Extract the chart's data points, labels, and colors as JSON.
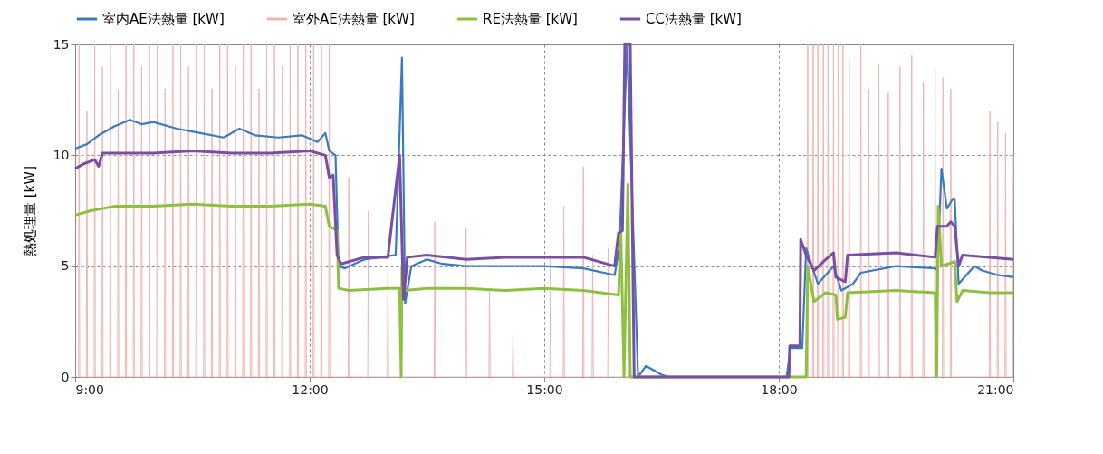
{
  "chart_data": {
    "type": "line",
    "ylabel": "熱処理量 [kW]",
    "xlim": [
      9,
      21
    ],
    "ylim": [
      0,
      15
    ],
    "xticks": [
      {
        "value": 9,
        "label": "9:00"
      },
      {
        "value": 12,
        "label": "12:00"
      },
      {
        "value": 15,
        "label": "15:00"
      },
      {
        "value": 18,
        "label": "18:00"
      },
      {
        "value": 21,
        "label": "21:00"
      }
    ],
    "yticks": [
      0,
      5,
      10,
      15
    ],
    "grid": true,
    "legend": "top",
    "marker": "none",
    "line_style": "solid",
    "series": [
      {
        "name": "室内AE法熱量 [kW]",
        "color": "#3a7bbf",
        "x": [
          9.0,
          9.15,
          9.3,
          9.5,
          9.7,
          9.85,
          10.0,
          10.3,
          10.6,
          10.9,
          11.1,
          11.3,
          11.6,
          11.9,
          12.1,
          12.2,
          12.25,
          12.33,
          12.37,
          12.45,
          12.7,
          12.9,
          13.1,
          13.18,
          13.22,
          13.3,
          13.5,
          13.7,
          14.0,
          14.5,
          15.0,
          15.5,
          15.9,
          15.96,
          16.06,
          16.2,
          16.3,
          16.5,
          16.6,
          18.1,
          18.15,
          18.3,
          18.35,
          18.5,
          18.7,
          18.8,
          18.95,
          19.05,
          19.5,
          20.0,
          20.03,
          20.08,
          20.15,
          20.22,
          20.25,
          20.3,
          20.5,
          20.6,
          20.8,
          21.0
        ],
        "values": [
          10.3,
          10.5,
          10.9,
          11.3,
          11.6,
          11.4,
          11.5,
          11.2,
          11.0,
          10.8,
          11.2,
          10.9,
          10.8,
          10.9,
          10.6,
          11.0,
          10.2,
          10.0,
          5.0,
          4.9,
          5.3,
          5.4,
          5.5,
          14.4,
          3.3,
          5.0,
          5.3,
          5.1,
          5.0,
          5.0,
          5.0,
          4.9,
          4.6,
          5.8,
          15,
          0,
          0.5,
          0.1,
          0,
          0,
          1.3,
          1.3,
          5.8,
          4.2,
          5.0,
          3.9,
          4.2,
          4.7,
          5.0,
          4.9,
          4.8,
          9.4,
          7.6,
          8.0,
          8.0,
          4.2,
          5.0,
          4.8,
          4.6,
          4.5
        ]
      },
      {
        "name": "室外AE法熱量 [kW]",
        "color": "#f0b4b4",
        "x": [
          9.042,
          9.05,
          9.058,
          9.142,
          9.15,
          9.158,
          9.242,
          9.25,
          9.258,
          9.342,
          9.35,
          9.358,
          9.442,
          9.45,
          9.458,
          9.542,
          9.55,
          9.558,
          9.642,
          9.65,
          9.658,
          9.742,
          9.75,
          9.758,
          9.842,
          9.85,
          9.858,
          9.942,
          9.95,
          9.958,
          10.042,
          10.05,
          10.058,
          10.142,
          10.15,
          10.158,
          10.242,
          10.25,
          10.258,
          10.342,
          10.35,
          10.358,
          10.442,
          10.45,
          10.458,
          10.542,
          10.55,
          10.558,
          10.642,
          10.65,
          10.658,
          10.742,
          10.75,
          10.758,
          10.842,
          10.85,
          10.858,
          10.942,
          10.95,
          10.958,
          11.042,
          11.05,
          11.058,
          11.142,
          11.15,
          11.158,
          11.242,
          11.25,
          11.258,
          11.342,
          11.35,
          11.358,
          11.442,
          11.45,
          11.458,
          11.542,
          11.55,
          11.558,
          11.642,
          11.65,
          11.658,
          11.742,
          11.75,
          11.758,
          11.842,
          11.85,
          11.858,
          11.942,
          11.95,
          11.958,
          12.042,
          12.05,
          12.058,
          12.142,
          12.15,
          12.158,
          12.242,
          12.25,
          12.258,
          12.492,
          12.5,
          12.508,
          12.742,
          12.75,
          12.758,
          12.992,
          13.0,
          13.008,
          13.592,
          13.6,
          13.608,
          13.992,
          14.0,
          14.008,
          14.292,
          14.3,
          14.308,
          14.592,
          14.6,
          14.608,
          15.072,
          15.08,
          15.088,
          15.242,
          15.25,
          15.258,
          15.492,
          15.5,
          15.508,
          15.612,
          15.62,
          15.628,
          15.812,
          15.82,
          15.828,
          18.362,
          18.37,
          18.378,
          18.432,
          18.44,
          18.448,
          18.492,
          18.5,
          18.508,
          18.562,
          18.57,
          18.578,
          18.622,
          18.63,
          18.638,
          18.692,
          18.7,
          18.708,
          18.752,
          18.76,
          18.768,
          18.812,
          18.82,
          18.828,
          18.892,
          18.9,
          18.908,
          19.042,
          19.05,
          19.058,
          19.142,
          19.15,
          19.158,
          19.272,
          19.28,
          19.288,
          19.392,
          19.4,
          19.408,
          19.542,
          19.55,
          19.558,
          19.692,
          19.7,
          19.708,
          19.842,
          19.85,
          19.858,
          19.992,
          20.0,
          20.008,
          20.092,
          20.1,
          20.108,
          20.192,
          20.2,
          20.208,
          20.692,
          20.7,
          20.708,
          20.792,
          20.8,
          20.808,
          20.892,
          20.9,
          20.908,
          20.992,
          21.0
        ],
        "values": [
          0,
          15,
          0,
          0,
          12,
          0,
          0,
          15,
          0,
          0,
          14,
          0,
          0,
          15,
          0,
          0,
          13,
          0,
          0,
          15,
          0,
          0,
          15,
          0,
          0,
          14,
          0,
          0,
          15,
          0,
          0,
          15,
          0,
          0,
          13,
          0,
          0,
          15,
          0,
          0,
          15,
          0,
          0,
          14,
          0,
          0,
          15,
          0,
          0,
          15,
          0,
          0,
          13,
          0,
          0,
          15,
          0,
          0,
          15,
          0,
          0,
          14,
          0,
          0,
          15,
          0,
          0,
          15,
          0,
          0,
          13,
          0,
          0,
          15,
          0,
          0,
          15,
          0,
          0,
          14,
          0,
          0,
          15,
          0,
          0,
          15,
          0,
          0,
          15,
          0,
          0,
          15,
          0,
          0,
          15,
          0,
          0,
          15,
          0,
          0,
          9.0,
          0,
          0,
          7.5,
          0,
          0,
          5.0,
          0,
          0,
          7.0,
          0,
          0,
          6.7,
          0,
          0,
          4.0,
          0,
          0,
          2.0,
          0,
          0,
          5.5,
          0,
          0,
          7.7,
          0,
          0,
          9.5,
          0,
          0,
          5.5,
          0,
          0,
          5.8,
          0,
          0,
          15,
          0,
          0,
          15,
          0,
          0,
          15,
          0,
          0,
          15,
          0,
          0,
          15,
          0,
          0,
          15,
          0,
          0,
          15,
          0,
          0,
          15,
          0,
          0,
          14.4,
          0,
          0,
          15,
          0,
          0,
          13,
          0,
          0,
          14.1,
          0,
          0,
          12.8,
          0,
          0,
          14.0,
          0,
          0,
          14.5,
          0,
          0,
          13.3,
          0,
          0,
          13.9,
          0,
          0,
          13.5,
          0,
          0,
          13.0,
          0,
          0,
          12.0,
          0,
          0,
          11.5,
          0,
          0,
          11.0,
          0,
          0,
          10.0
        ]
      },
      {
        "name": "RE法熱量 [kW]",
        "color": "#8dc03f",
        "x": [
          9.0,
          9.2,
          9.5,
          10.0,
          10.5,
          11.0,
          11.5,
          12.0,
          12.2,
          12.25,
          12.35,
          12.37,
          12.5,
          13.0,
          13.15,
          13.17,
          13.18,
          13.22,
          13.5,
          14.0,
          14.5,
          15.0,
          15.5,
          15.95,
          15.98,
          16.02,
          16.07,
          16.1,
          18.35,
          18.37,
          18.45,
          18.6,
          18.73,
          18.75,
          18.85,
          18.88,
          19.5,
          20.0,
          20.02,
          20.04,
          20.08,
          20.25,
          20.28,
          20.35,
          20.7,
          21.0
        ],
        "values": [
          7.3,
          7.5,
          7.7,
          7.7,
          7.8,
          7.7,
          7.7,
          7.8,
          7.7,
          6.8,
          6.6,
          4.0,
          3.9,
          4.0,
          4.0,
          0,
          5.0,
          3.9,
          4.0,
          4.0,
          3.9,
          4.0,
          3.9,
          3.7,
          6.5,
          0,
          8.7,
          0,
          0,
          5.0,
          3.4,
          3.8,
          3.7,
          2.6,
          2.7,
          3.8,
          3.9,
          3.8,
          0,
          7.7,
          5.0,
          5.2,
          3.4,
          3.9,
          3.8,
          3.8
        ]
      },
      {
        "name": "CC法熱量 [kW]",
        "color": "#7a4ea3",
        "x": [
          9.0,
          9.1,
          9.25,
          9.3,
          9.35,
          10.0,
          10.5,
          11.0,
          11.5,
          12.0,
          12.2,
          12.25,
          12.3,
          12.35,
          12.4,
          12.7,
          13.0,
          13.15,
          13.2,
          13.25,
          13.5,
          14.0,
          14.5,
          15.0,
          15.5,
          15.9,
          15.95,
          16.0,
          16.03,
          16.1,
          16.15,
          18.13,
          18.14,
          18.27,
          18.28,
          18.35,
          18.45,
          18.6,
          18.7,
          18.73,
          18.85,
          18.88,
          19.5,
          20.0,
          20.03,
          20.15,
          20.2,
          20.25,
          20.3,
          20.35,
          21.0
        ],
        "values": [
          9.4,
          9.6,
          9.8,
          9.5,
          10.1,
          10.1,
          10.2,
          10.1,
          10.1,
          10.2,
          10.0,
          9.0,
          9.1,
          5.5,
          5.1,
          5.4,
          5.4,
          10.0,
          3.5,
          5.4,
          5.5,
          5.3,
          5.4,
          5.4,
          5.4,
          5.0,
          6.5,
          6.6,
          15,
          15,
          0,
          0,
          1.4,
          1.4,
          6.2,
          5.5,
          4.8,
          5.3,
          5.6,
          4.5,
          4.3,
          5.5,
          5.6,
          5.4,
          6.8,
          6.8,
          7.0,
          6.8,
          5.0,
          5.5,
          5.3
        ]
      }
    ]
  }
}
